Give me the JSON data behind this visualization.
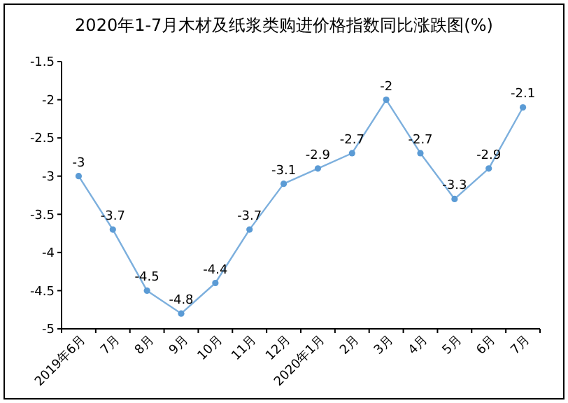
{
  "chart_data": {
    "type": "line",
    "title": "2020年1-7月木材及纸浆类购进价格指数同比涨跌图(%)",
    "categories": [
      "2019年6月",
      "7月",
      "8月",
      "9月",
      "10月",
      "11月",
      "12月",
      "2020年1月",
      "2月",
      "3月",
      "4月",
      "5月",
      "6月",
      "7月"
    ],
    "series": [
      {
        "color": "#5b9bd5",
        "values": [
          -3,
          -3.7,
          -4.5,
          -4.8,
          -4.4,
          -3.7,
          -3.1,
          -2.9,
          -2.7,
          -2,
          -2.7,
          -3.3,
          -2.9,
          -2.1
        ]
      }
    ],
    "ylim": [
      -5,
      -1.5
    ],
    "yticks": [
      -5,
      -4.5,
      -4,
      -3.5,
      -3,
      -2.5,
      -2,
      -1.5
    ],
    "marker": "circle",
    "line_style": "solid",
    "data_labels": true
  }
}
